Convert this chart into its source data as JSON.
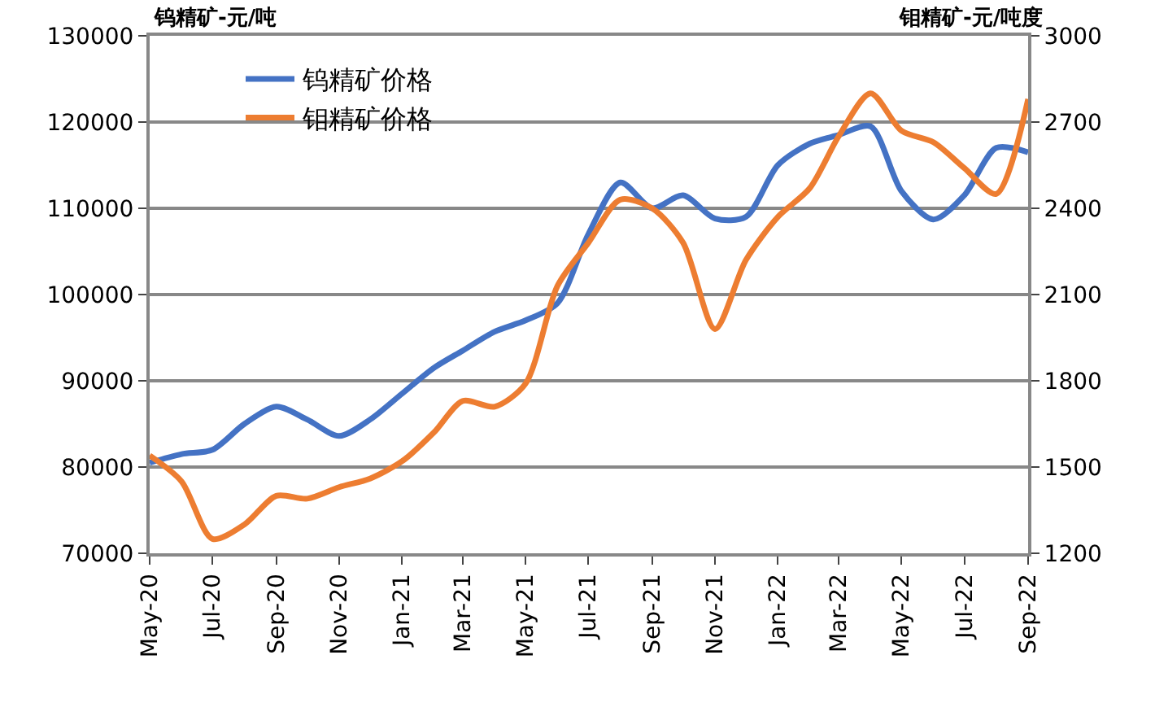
{
  "chart_data": {
    "type": "line",
    "ylabel": "钨精矿-元/吨",
    "y2label": "钼精矿-元/吨度",
    "x": [
      "2020-05",
      "2020-06",
      "2020-07",
      "2020-08",
      "2020-09",
      "2020-10",
      "2020-11",
      "2020-12",
      "2021-01",
      "2021-02",
      "2021-03",
      "2021-04",
      "2021-05",
      "2021-06",
      "2021-07",
      "2021-08",
      "2021-09",
      "2021-10",
      "2021-11",
      "2021-12",
      "2022-01",
      "2022-02",
      "2022-03",
      "2022-04",
      "2022-05",
      "2022-06",
      "2022-07",
      "2022-08",
      "2022-09"
    ],
    "series": [
      {
        "name": "钨精矿价格",
        "color": "#4472c4",
        "values": [
          80500,
          81500,
          82000,
          85000,
          87000,
          85500,
          83600,
          85500,
          88500,
          91500,
          93500,
          95700,
          97000,
          99000,
          107000,
          113000,
          110000,
          111500,
          108800,
          109000,
          115000,
          117500,
          118500,
          119500,
          112000,
          108700,
          111500,
          117000,
          116500
        ]
      },
      {
        "name": "钼精矿价格",
        "color": "#ed7d31",
        "axis": "y2",
        "values": [
          1540,
          1450,
          1250,
          1300,
          1400,
          1390,
          1430,
          1460,
          1520,
          1620,
          1730,
          1710,
          1790,
          2130,
          2280,
          2430,
          2400,
          2280,
          1980,
          2220,
          2370,
          2470,
          2650,
          2800,
          2670,
          2630,
          2540,
          2450,
          2780
        ]
      }
    ],
    "xlim": [
      "2020-05",
      "2022-09"
    ],
    "xticks": [
      {
        "value": "2020-05",
        "label": "May-20"
      },
      {
        "value": "2020-07",
        "label": "Jul-20"
      },
      {
        "value": "2020-09",
        "label": "Sep-20"
      },
      {
        "value": "2020-11",
        "label": "Nov-20"
      },
      {
        "value": "2021-01",
        "label": "Jan-21"
      },
      {
        "value": "2021-03",
        "label": "Mar-21"
      },
      {
        "value": "2021-05",
        "label": "May-21"
      },
      {
        "value": "2021-07",
        "label": "Jul-21"
      },
      {
        "value": "2021-09",
        "label": "Sep-21"
      },
      {
        "value": "2021-11",
        "label": "Nov-21"
      },
      {
        "value": "2022-01",
        "label": "Jan-22"
      },
      {
        "value": "2022-03",
        "label": "Mar-22"
      },
      {
        "value": "2022-05",
        "label": "May-22"
      },
      {
        "value": "2022-07",
        "label": "Jul-22"
      },
      {
        "value": "2022-09",
        "label": "Sep-22"
      }
    ],
    "ylim": [
      70000,
      130000
    ],
    "yticks": [
      70000,
      80000,
      90000,
      100000,
      110000,
      120000,
      130000
    ],
    "y2lim": [
      1200,
      3000
    ],
    "y2ticks": [
      1200,
      1500,
      1800,
      2100,
      2400,
      2700,
      3000
    ],
    "grid": "y",
    "legend": "top left",
    "marker": "none",
    "line_style": "solid"
  }
}
